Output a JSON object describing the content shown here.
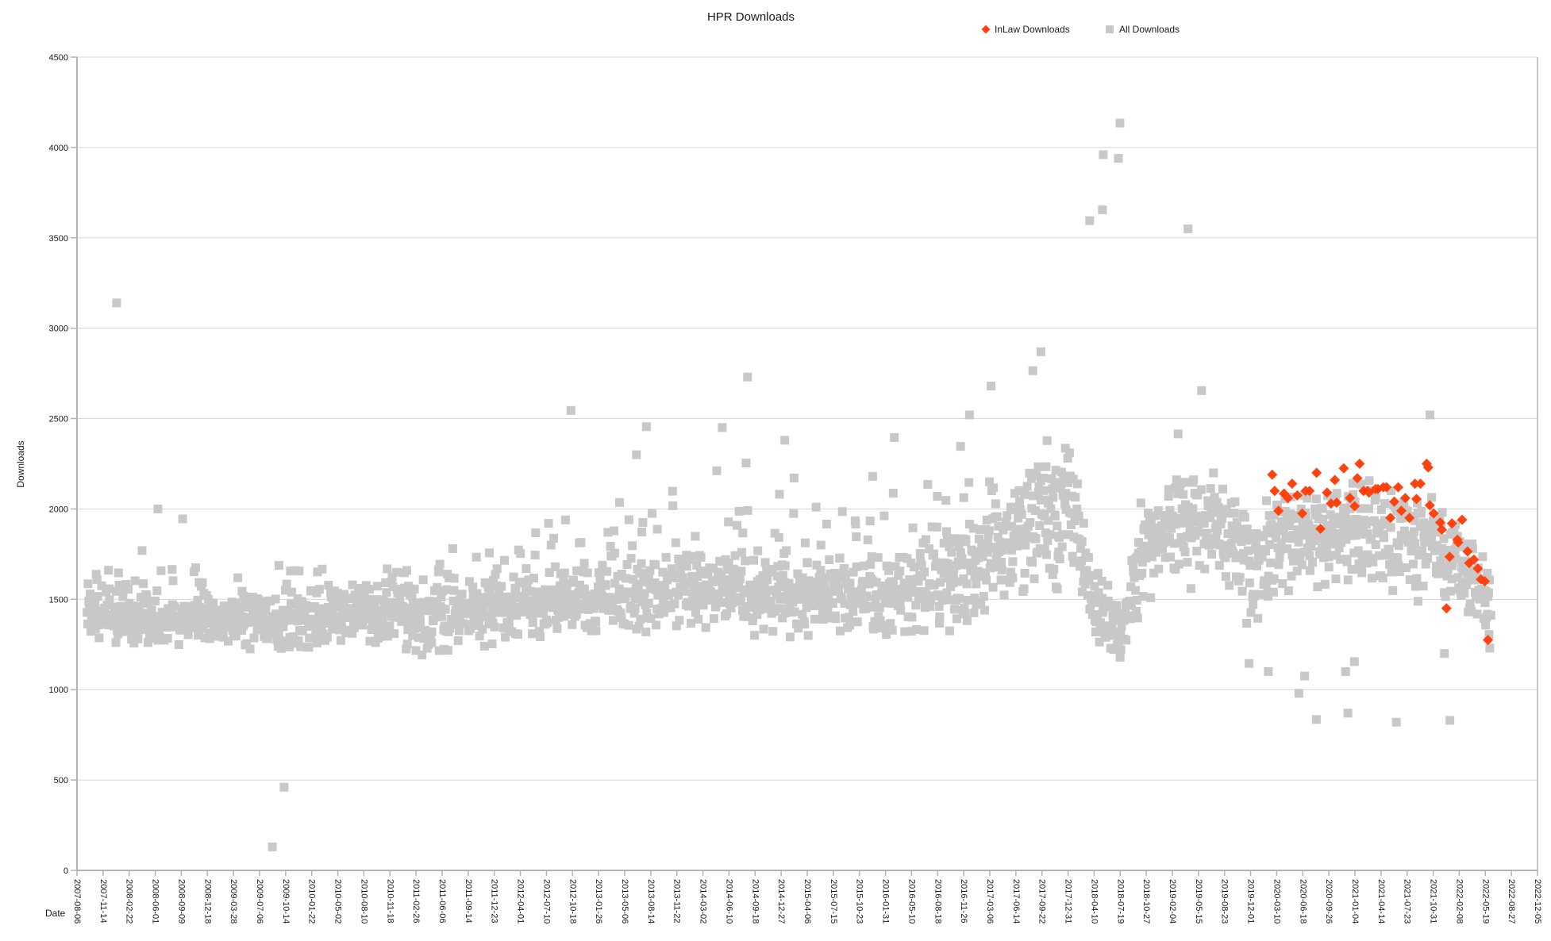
{
  "page": {
    "background": "#ffffff"
  },
  "chart_data": {
    "type": "scatter",
    "title": "HPR Downloads",
    "xlabel": "Date",
    "ylabel": "Downloads",
    "grid": true,
    "legend_position": "top",
    "ylim": [
      0,
      4500
    ],
    "y_ticks": [
      0,
      500,
      1000,
      1500,
      2000,
      2500,
      3000,
      3500,
      4000,
      4500
    ],
    "x_epoch": "2007-08-06",
    "x_tick_interval_days": 100,
    "x_ticks": [
      "2007-08-06",
      "2007-11-14",
      "2008-02-22",
      "2008-06-01",
      "2008-09-09",
      "2008-12-18",
      "2009-03-28",
      "2009-07-06",
      "2009-10-14",
      "2010-01-22",
      "2010-05-02",
      "2010-08-10",
      "2010-11-18",
      "2011-02-26",
      "2011-06-06",
      "2011-09-14",
      "2011-12-23",
      "2012-04-01",
      "2012-07-10",
      "2012-10-18",
      "2013-01-26",
      "2013-05-06",
      "2013-08-14",
      "2013-11-22",
      "2014-03-02",
      "2014-06-10",
      "2014-09-18",
      "2014-12-27",
      "2015-04-06",
      "2015-07-15",
      "2015-10-23",
      "2016-01-31",
      "2016-05-10",
      "2016-08-18",
      "2016-11-26",
      "2017-03-06",
      "2017-06-14",
      "2017-09-22",
      "2017-12-31",
      "2018-04-10",
      "2018-07-19",
      "2018-10-27",
      "2019-02-04",
      "2019-05-15",
      "2019-08-23",
      "2019-12-01",
      "2020-03-10",
      "2020-06-18",
      "2020-09-26",
      "2021-01-04",
      "2021-04-14",
      "2021-07-23",
      "2021-10-31",
      "2022-02-08",
      "2022-05-19",
      "2022-08-27",
      "2022-12-05"
    ],
    "series": [
      {
        "name": "InLaw Downloads",
        "marker": "diamond",
        "color": "#ff420e",
        "points": [
          [
            "2020-02-22",
            2190
          ],
          [
            "2020-03-02",
            2100
          ],
          [
            "2020-03-17",
            1990
          ],
          [
            "2020-04-07",
            2085
          ],
          [
            "2020-04-22",
            2060
          ],
          [
            "2020-05-08",
            2140
          ],
          [
            "2020-05-28",
            2075
          ],
          [
            "2020-06-16",
            1975
          ],
          [
            "2020-06-29",
            2100
          ],
          [
            "2020-07-14",
            2100
          ],
          [
            "2020-08-10",
            2200
          ],
          [
            "2020-08-25",
            1890
          ],
          [
            "2020-09-19",
            2090
          ],
          [
            "2020-10-04",
            2030
          ],
          [
            "2020-10-19",
            2160
          ],
          [
            "2020-10-26",
            2035
          ],
          [
            "2020-11-22",
            2225
          ],
          [
            "2020-12-16",
            2060
          ],
          [
            "2021-01-03",
            2015
          ],
          [
            "2021-01-13",
            2170
          ],
          [
            "2021-01-22",
            2250
          ],
          [
            "2021-02-06",
            2100
          ],
          [
            "2021-02-21",
            2100
          ],
          [
            "2021-02-27",
            2090
          ],
          [
            "2021-03-24",
            2110
          ],
          [
            "2021-04-02",
            2110
          ],
          [
            "2021-04-23",
            2120
          ],
          [
            "2021-05-05",
            2120
          ],
          [
            "2021-05-20",
            1950
          ],
          [
            "2021-06-04",
            2040
          ],
          [
            "2021-06-19",
            2120
          ],
          [
            "2021-07-01",
            1990
          ],
          [
            "2021-07-16",
            2060
          ],
          [
            "2021-08-01",
            1950
          ],
          [
            "2021-08-22",
            2140
          ],
          [
            "2021-08-28",
            2055
          ],
          [
            "2021-09-12",
            2140
          ],
          [
            "2021-10-06",
            2250
          ],
          [
            "2021-10-12",
            2230
          ],
          [
            "2021-10-18",
            2020
          ],
          [
            "2021-11-02",
            1975
          ],
          [
            "2021-11-27",
            1925
          ],
          [
            "2021-12-03",
            1885
          ],
          [
            "2021-12-21",
            1450
          ],
          [
            "2022-01-02",
            1735
          ],
          [
            "2022-01-11",
            1920
          ],
          [
            "2022-02-01",
            1830
          ],
          [
            "2022-02-04",
            1815
          ],
          [
            "2022-02-19",
            1940
          ],
          [
            "2022-03-12",
            1765
          ],
          [
            "2022-03-18",
            1700
          ],
          [
            "2022-04-05",
            1720
          ],
          [
            "2022-04-20",
            1670
          ],
          [
            "2022-05-02",
            1610
          ],
          [
            "2022-05-17",
            1600
          ],
          [
            "2022-05-29",
            1275
          ]
        ]
      },
      {
        "name": "All Downloads",
        "marker": "square",
        "color": "#c8c8c8",
        "outliers": [
          [
            "2008-01-05",
            3140
          ],
          [
            "2008-06-11",
            2000
          ],
          [
            "2008-09-14",
            1945
          ],
          [
            "2009-08-24",
            130
          ],
          [
            "2009-10-08",
            460
          ],
          [
            "2012-10-12",
            2545
          ],
          [
            "2013-06-20",
            2300
          ],
          [
            "2013-07-28",
            2455
          ],
          [
            "2014-05-15",
            2450
          ],
          [
            "2014-08-20",
            2730
          ],
          [
            "2015-01-10",
            2380
          ],
          [
            "2016-03-05",
            2395
          ],
          [
            "2016-12-18",
            2520
          ],
          [
            "2017-03-11",
            2680
          ],
          [
            "2017-08-18",
            2765
          ],
          [
            "2017-09-18",
            2870
          ],
          [
            "2018-03-24",
            3595
          ],
          [
            "2018-05-12",
            3655
          ],
          [
            "2018-05-15",
            3960
          ],
          [
            "2018-07-12",
            3940
          ],
          [
            "2018-07-18",
            4135
          ],
          [
            "2019-02-26",
            2415
          ],
          [
            "2019-04-05",
            3550
          ],
          [
            "2019-05-27",
            2655
          ],
          [
            "2019-11-25",
            1145
          ],
          [
            "2020-02-07",
            1100
          ],
          [
            "2020-06-03",
            980
          ],
          [
            "2020-06-25",
            1075
          ],
          [
            "2020-08-09",
            835
          ],
          [
            "2020-11-29",
            1100
          ],
          [
            "2020-12-08",
            870
          ],
          [
            "2021-01-02",
            1155
          ],
          [
            "2021-06-12",
            820
          ],
          [
            "2021-10-19",
            2520
          ],
          [
            "2021-12-13",
            1200
          ],
          [
            "2022-01-03",
            830
          ],
          [
            "2022-06-05",
            1230
          ]
        ],
        "band": {
          "step_days": 2,
          "seed": 42,
          "skip_prob": 0.06,
          "core_prob": 0.78,
          "keyframes": [
            [
              "2007-09-14",
              1250,
              1400,
              1820
            ],
            [
              "2008-06-01",
              1230,
              1380,
              1780
            ],
            [
              "2009-03-28",
              1210,
              1370,
              1700
            ],
            [
              "2009-12-18",
              1200,
              1380,
              1760
            ],
            [
              "2010-08-10",
              1230,
              1400,
              1800
            ],
            [
              "2011-06-06",
              1160,
              1400,
              1860
            ],
            [
              "2012-04-01",
              1250,
              1450,
              2000
            ],
            [
              "2012-10-18",
              1270,
              1470,
              2120
            ],
            [
              "2013-08-14",
              1280,
              1520,
              2200
            ],
            [
              "2014-06-10",
              1300,
              1550,
              2350
            ],
            [
              "2015-04-06",
              1280,
              1520,
              2260
            ],
            [
              "2016-01-31",
              1250,
              1520,
              2300
            ],
            [
              "2016-11-26",
              1300,
              1600,
              2380
            ],
            [
              "2017-06-14",
              1450,
              1800,
              2430
            ],
            [
              "2017-12-31",
              1550,
              2000,
              2500
            ],
            [
              "2018-04-10",
              1230,
              1430,
              1760
            ],
            [
              "2018-07-19",
              1140,
              1310,
              1540
            ],
            [
              "2018-10-27",
              1380,
              1750,
              2230
            ],
            [
              "2019-03-15",
              1550,
              1900,
              2300
            ],
            [
              "2019-08-23",
              1480,
              1800,
              2240
            ],
            [
              "2019-12-01",
              1280,
              1680,
              2180
            ],
            [
              "2020-05-01",
              1500,
              1800,
              2150
            ],
            [
              "2020-12-15",
              1560,
              1850,
              2200
            ],
            [
              "2021-07-23",
              1500,
              1800,
              2160
            ],
            [
              "2021-12-01",
              1440,
              1760,
              2100
            ],
            [
              "2022-03-01",
              1380,
              1650,
              1960
            ],
            [
              "2022-06-10",
              1220,
              1420,
              1700
            ]
          ]
        }
      }
    ],
    "colors": {
      "inlaw": "#ff420e",
      "all": "#c8c8c8",
      "grid": "#d6d6d6",
      "axis": "#b3b3b3",
      "text": "#1a1a1a"
    }
  }
}
